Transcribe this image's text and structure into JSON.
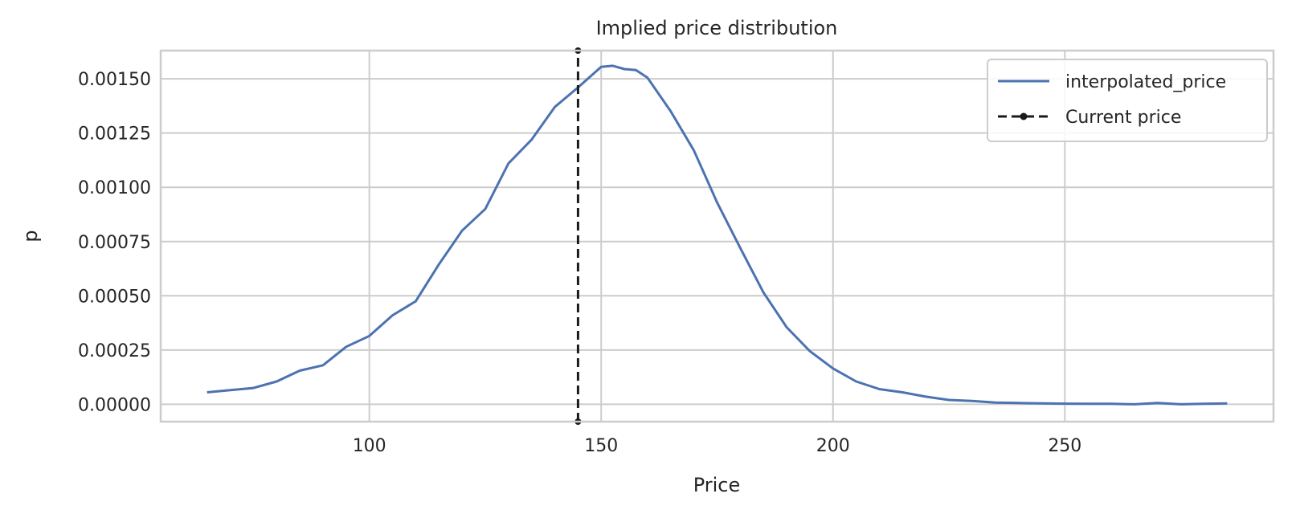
{
  "chart_data": {
    "type": "line",
    "title": "Implied price distribution",
    "xlabel": "Price",
    "ylabel": "p",
    "xlim": [
      55,
      295
    ],
    "ylim": [
      -8e-05,
      0.00163
    ],
    "xticks": [
      100,
      150,
      200,
      250
    ],
    "xtick_labels": [
      "100",
      "150",
      "200",
      "250"
    ],
    "yticks": [
      0,
      0.00025,
      0.0005,
      0.00075,
      0.001,
      0.00125,
      0.0015
    ],
    "ytick_labels": [
      "0.00000",
      "0.00025",
      "0.00050",
      "0.00075",
      "0.00100",
      "0.00125",
      "0.00150"
    ],
    "grid": true,
    "legend_position": "top-right",
    "current_price": 145,
    "series": [
      {
        "name": "interpolated_price",
        "color": "#4c72b0",
        "style": "solid",
        "x": [
          65,
          70,
          75,
          80,
          85,
          90,
          95,
          100,
          105,
          110,
          115,
          120,
          125,
          130,
          135,
          140,
          145,
          150,
          152.5,
          155,
          157.5,
          160,
          165,
          170,
          175,
          180,
          185,
          190,
          195,
          200,
          205,
          210,
          215,
          220,
          225,
          230,
          235,
          240,
          245,
          250,
          255,
          260,
          265,
          270,
          275,
          280,
          285
        ],
        "y": [
          5.5e-05,
          6.5e-05,
          7.5e-05,
          0.000105,
          0.000155,
          0.00018,
          0.000265,
          0.000315,
          0.00041,
          0.000475,
          0.000645,
          0.0008,
          0.0009,
          0.00111,
          0.00122,
          0.00137,
          0.00146,
          0.001555,
          0.00156,
          0.001545,
          0.00154,
          0.001505,
          0.00135,
          0.00117,
          0.00093,
          0.00072,
          0.000515,
          0.000355,
          0.000245,
          0.000165,
          0.000105,
          7e-05,
          5.5e-05,
          3.5e-05,
          2e-05,
          1.5e-05,
          8e-06,
          6e-06,
          4e-06,
          3e-06,
          2e-06,
          2e-06,
          0.0,
          6e-06,
          0.0,
          2e-06,
          4e-06
        ]
      },
      {
        "name": "Current price",
        "color": "#1a1a1a",
        "style": "dashed",
        "x": [
          145,
          145
        ],
        "y": [
          -8e-05,
          0.00163
        ]
      }
    ]
  }
}
